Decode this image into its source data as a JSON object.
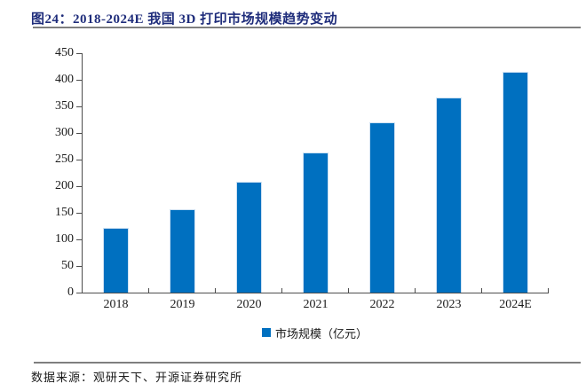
{
  "figure": {
    "title": "图24：2018-2024E 我国 3D 打印市场规模趋势变动",
    "source_note": "数据来源：观研天下、开源证券研究所"
  },
  "legend": {
    "label": "市场规模（亿元）"
  },
  "colors": {
    "bar": "#0070C0",
    "bar_edge": "#CFE2F3",
    "title_text": "#1F2D7B",
    "axis": "#4D4D4D",
    "divider": "#7F7F7F",
    "text": "#1A1A1A"
  },
  "chart_data": {
    "type": "bar",
    "title": "图24：2018-2024E 我国 3D 打印市场规模趋势变动",
    "categories": [
      "2018",
      "2019",
      "2020",
      "2021",
      "2022",
      "2023",
      "2024E"
    ],
    "values": [
      122,
      157,
      208,
      263,
      320,
      367,
      415
    ],
    "series_name": "市场规模（亿元）",
    "xlabel": "",
    "ylabel": "",
    "ylim": [
      0,
      450
    ],
    "ytick_step": 50,
    "yticks": [
      0,
      50,
      100,
      150,
      200,
      250,
      300,
      350,
      400,
      450
    ],
    "grid": false,
    "legend_position": "bottom",
    "bar_color": "#0070C0"
  }
}
